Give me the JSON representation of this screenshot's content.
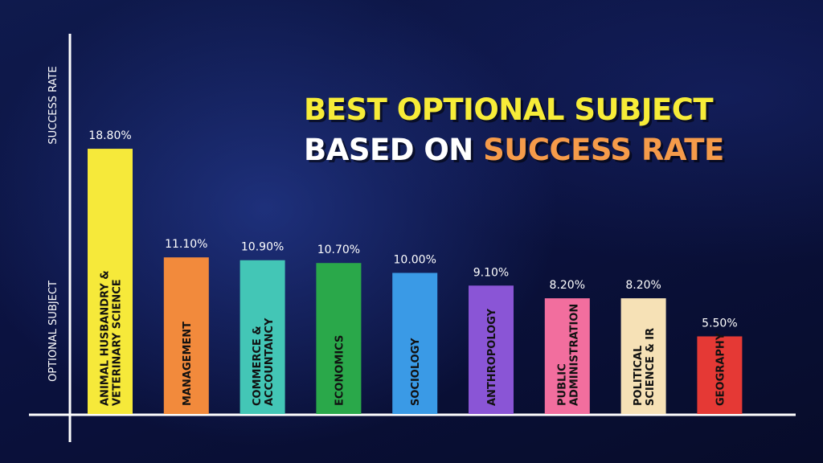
{
  "title": {
    "line1": "BEST OPTIONAL SUBJECT",
    "line2_prefix": "BASED ON ",
    "line2_highlight": "SUCCESS RATE"
  },
  "colors": {
    "title_primary": "#f7ec38",
    "title_secondary": "#ffffff",
    "title_highlight": "#f59b4a",
    "axis": "#ffffff",
    "background": "#0b1133"
  },
  "chart_data": {
    "type": "bar",
    "xlabel": "OPTIONAL SUBJECT",
    "ylabel": "SUCCESS RATE",
    "ylim": [
      0,
      20
    ],
    "grid": false,
    "legend": "none",
    "categories": [
      [
        "ANIMAL HUSBANDRY &",
        "VETERINARY SCIENCE"
      ],
      [
        "MANAGEMENT"
      ],
      [
        "COMMERCE &",
        "ACCOUNTANCY"
      ],
      [
        "ECONOMICS"
      ],
      [
        "SOCIOLOGY"
      ],
      [
        "ANTHROPOLOGY"
      ],
      [
        "PUBLIC",
        "ADMINISTRATION"
      ],
      [
        "POLITICAL",
        "SCIENCE & IR"
      ],
      [
        "GEOGRAPHY"
      ]
    ],
    "values": [
      18.8,
      11.1,
      10.9,
      10.7,
      10.0,
      9.1,
      8.2,
      8.2,
      5.5
    ],
    "value_labels": [
      "18.80%",
      "11.10%",
      "10.90%",
      "10.70%",
      "10.00%",
      "9.10%",
      "8.20%",
      "8.20%",
      "5.50%"
    ],
    "bar_colors": [
      "#f6e93a",
      "#f28a3c",
      "#43c6b6",
      "#2aa84a",
      "#3a9ae6",
      "#8a55d6",
      "#f26e9e",
      "#f6e1b6",
      "#e53935"
    ]
  }
}
